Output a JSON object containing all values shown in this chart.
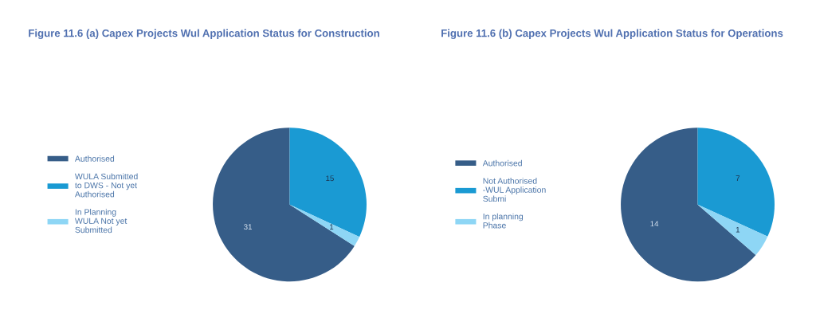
{
  "chart_data": [
    {
      "type": "pie",
      "title": "Figure 11.6 (a) Capex Projects Wul Application Status for Construction",
      "categories": [
        "Authorised",
        "WULA Submitted\nto DWS - Not yet\nAuthorised",
        "In Planning\nWULA Not yet\nSubmitted"
      ],
      "values": [
        31,
        15,
        1
      ],
      "colors": [
        "#365d88",
        "#1a9ad3",
        "#8ed6f5"
      ],
      "data_labels": true,
      "legend": "left"
    },
    {
      "type": "pie",
      "title": "Figure 11.6 (b) Capex Projects Wul Application Status for Operations",
      "categories": [
        "Authorised",
        "Not Authorised\n-WUL Application\nSubmi",
        "In planning\nPhase"
      ],
      "values": [
        14,
        7,
        1
      ],
      "colors": [
        "#365d88",
        "#1a9ad3",
        "#8ed6f5"
      ],
      "data_labels": true,
      "legend": "left"
    }
  ]
}
